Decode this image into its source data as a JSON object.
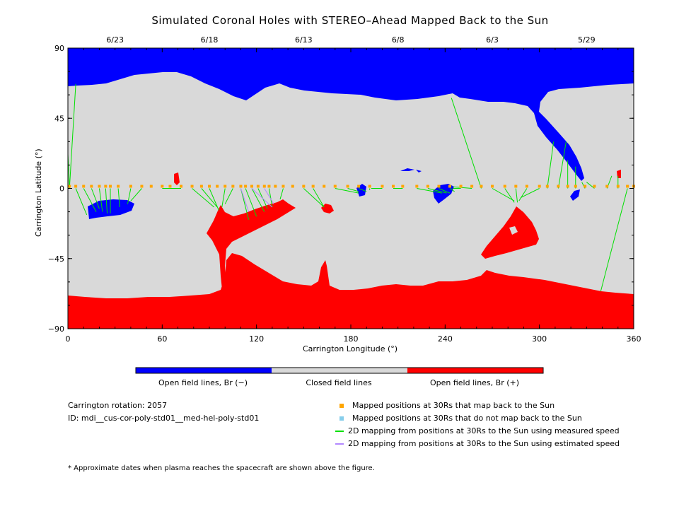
{
  "chart_data": {
    "type": "map",
    "title": "Simulated Coronal Holes with STEREO–Ahead Mapped Back to the Sun",
    "xlabel": "Carrington Longitude (°)",
    "ylabel": "Carrington Latitude (°)",
    "xlim": [
      0,
      360
    ],
    "ylim": [
      -90,
      90
    ],
    "x_ticks": [
      "0",
      "60",
      "120",
      "180",
      "240",
      "300",
      "360"
    ],
    "y_ticks": [
      "90",
      "45",
      "0",
      "−45",
      "−90"
    ],
    "top_dates": [
      {
        "label": "6/23",
        "lon": 30
      },
      {
        "label": "6/18",
        "lon": 90
      },
      {
        "label": "6/13",
        "lon": 150
      },
      {
        "label": "6/8",
        "lon": 210
      },
      {
        "label": "6/3",
        "lon": 270
      },
      {
        "label": "5/29",
        "lon": 330
      }
    ],
    "colors": {
      "open_negative": "#0000ff",
      "closed": "#d9d9d9",
      "open_positive": "#ff0000",
      "mapped_back": "#ffa500",
      "not_mapped": "#87ceeb",
      "measured_speed": "#00e000",
      "estimated_speed": "#b388ff"
    },
    "spacecraft_positions_lon": [
      1,
      5,
      10,
      15,
      20,
      24,
      27,
      32,
      40,
      47,
      53,
      60,
      65,
      72,
      79,
      85,
      90,
      95,
      100,
      105,
      110,
      113,
      117,
      121,
      125,
      128,
      132,
      137,
      143,
      150,
      156,
      163,
      170,
      178,
      185,
      192,
      200,
      207,
      213,
      222,
      229,
      236,
      243,
      250,
      257,
      263,
      270,
      278,
      285,
      292,
      300,
      305,
      312,
      318,
      323,
      329,
      335,
      343,
      350,
      356,
      360
    ],
    "mapping_lines": [
      [
        1,
        0,
        5,
        67
      ],
      [
        1,
        0,
        0,
        22
      ],
      [
        5,
        0,
        12,
        -17
      ],
      [
        10,
        0,
        18,
        -15
      ],
      [
        15,
        0,
        20,
        -13
      ],
      [
        20,
        0,
        22,
        -15
      ],
      [
        24,
        0,
        25,
        -16
      ],
      [
        27,
        0,
        27,
        -16
      ],
      [
        32,
        0,
        33,
        -12
      ],
      [
        40,
        0,
        38,
        -10
      ],
      [
        47,
        0,
        40,
        -8
      ],
      [
        60,
        0,
        65,
        0
      ],
      [
        65,
        0,
        72,
        0
      ],
      [
        79,
        0,
        93,
        -12
      ],
      [
        85,
        0,
        95,
        -12
      ],
      [
        90,
        0,
        96,
        -14
      ],
      [
        100,
        0,
        98,
        -12
      ],
      [
        105,
        0,
        100,
        -10
      ],
      [
        110,
        0,
        115,
        -20
      ],
      [
        113,
        0,
        120,
        -18
      ],
      [
        117,
        0,
        125,
        -15
      ],
      [
        121,
        0,
        127,
        -13
      ],
      [
        128,
        0,
        130,
        -12
      ],
      [
        137,
        0,
        135,
        -7
      ],
      [
        150,
        0,
        163,
        -12
      ],
      [
        156,
        0,
        163,
        -12
      ],
      [
        170,
        0,
        185,
        -3
      ],
      [
        178,
        0,
        185,
        -2
      ],
      [
        185,
        0,
        190,
        -2
      ],
      [
        192,
        0,
        192,
        -1
      ],
      [
        200,
        0,
        193,
        0
      ],
      [
        213,
        0,
        207,
        0
      ],
      [
        222,
        0,
        238,
        -3
      ],
      [
        229,
        0,
        241,
        -3
      ],
      [
        236,
        0,
        243,
        -3
      ],
      [
        243,
        0,
        246,
        -2
      ],
      [
        250,
        0,
        245,
        0
      ],
      [
        257,
        0,
        245,
        1
      ],
      [
        263,
        0,
        244,
        58
      ],
      [
        270,
        0,
        284,
        -8
      ],
      [
        278,
        0,
        284,
        -9
      ],
      [
        285,
        0,
        286,
        -9
      ],
      [
        292,
        0,
        287,
        -8
      ],
      [
        300,
        0,
        288,
        -6
      ],
      [
        305,
        0,
        309,
        30
      ],
      [
        312,
        0,
        317,
        30
      ],
      [
        318,
        0,
        318,
        18
      ],
      [
        323,
        0,
        323,
        14
      ],
      [
        329,
        0,
        327,
        4
      ],
      [
        335,
        0,
        330,
        4
      ],
      [
        343,
        0,
        346,
        8
      ],
      [
        350,
        0,
        350,
        8
      ],
      [
        356,
        0,
        339,
        -66
      ],
      [
        360,
        0,
        360,
        16
      ]
    ],
    "estimated_lines": [
      [
        110,
        0,
        115,
        -15
      ],
      [
        117,
        0,
        130,
        -12
      ],
      [
        125,
        0,
        131,
        -10
      ]
    ],
    "colorbar": {
      "segments": [
        "open_negative",
        "closed",
        "open_positive"
      ],
      "labels": [
        "Open field lines, Br (−)",
        "Closed field lines",
        "Open field lines, Br (+)"
      ]
    }
  },
  "info": {
    "rotation": "Carrington rotation: 2057",
    "id": "ID: mdi__cus-cor-poly-std01__med-hel-poly-std01"
  },
  "legend": {
    "mapped_back": "Mapped positions at 30Rs that map back to the Sun",
    "not_mapped": "Mapped positions at 30Rs that do not map back to the Sun",
    "measured": "2D mapping from positions at 30Rs to the Sun using measured speed",
    "estimated": "2D mapping from positions at 30Rs to the Sun using estimated speed"
  },
  "footnote": "* Approximate dates when plasma reaches the spacecraft are shown above the figure."
}
